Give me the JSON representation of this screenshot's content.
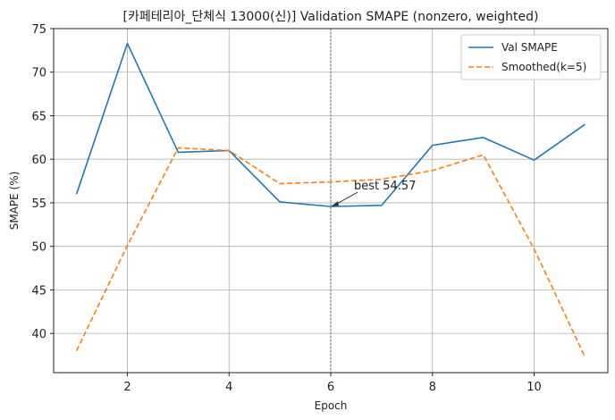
{
  "chart_data": {
    "type": "line",
    "title": "[카페테리아_단체식 13000(신)] Validation SMAPE (nonzero, weighted)",
    "xlabel": "Epoch",
    "ylabel": "SMAPE (%)",
    "xlim": [
      0.55,
      11.45
    ],
    "ylim": [
      35.5,
      75
    ],
    "x": [
      1,
      2,
      3,
      4,
      5,
      6,
      7,
      8,
      9,
      10,
      11
    ],
    "xticks": [
      2,
      4,
      6,
      8,
      10
    ],
    "yticks": [
      40,
      45,
      50,
      55,
      60,
      65,
      70,
      75
    ],
    "grid": true,
    "legend_position": "top-right",
    "series": [
      {
        "name": "Val SMAPE",
        "color": "#1f77b4",
        "style": "solid",
        "values": [
          56.0,
          73.3,
          60.8,
          61.0,
          55.1,
          54.57,
          54.7,
          61.6,
          62.5,
          59.9,
          64.0
        ]
      },
      {
        "name": "Smoothed(k=5)",
        "color": "#ff7f0e",
        "style": "dashed",
        "values": [
          38.0,
          50.1,
          61.3,
          61.0,
          57.2,
          57.4,
          57.7,
          58.7,
          60.5,
          49.7,
          37.3
        ]
      }
    ],
    "best_marker": {
      "epoch": 6,
      "value": 54.57,
      "label": "best 54.57",
      "line_color": "#888888"
    }
  }
}
